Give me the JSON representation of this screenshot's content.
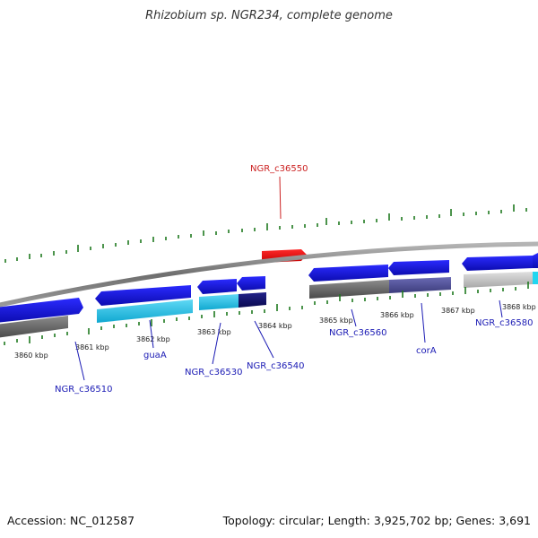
{
  "title": "Rhizobium sp. NGR234, complete genome",
  "footer": {
    "accession": "Accession: NC_012587",
    "summary": "Topology: circular; Length: 3,925,702 bp; Genes: 3,691"
  },
  "colors": {
    "backbone": "#8a8a8a",
    "forward_gene": "#1515d6",
    "highlight_gene": "#e01010",
    "label": "#1a1ab4",
    "highlight_label": "#cc2222",
    "gc_skew": "#1f7a1f",
    "cds_cyan": "#26c6ea",
    "cds_gray": "#6b6b6b",
    "cds_light": "#c8c8c8",
    "cds_navy": "#131370",
    "cds_purple": "#53539a"
  },
  "scale_ticks": [
    "3860 kbp",
    "3861 kbp",
    "3862 kbp",
    "3863 kbp",
    "3864 kbp",
    "3865 kbp",
    "3866 kbp",
    "3867 kbp",
    "3868 kbp"
  ],
  "genes": [
    {
      "id": "NGR_c36510",
      "strand": "reverse",
      "highlight": false
    },
    {
      "id": "guaA",
      "strand": "reverse",
      "highlight": false
    },
    {
      "id": "NGR_c36530",
      "strand": "reverse",
      "highlight": false
    },
    {
      "id": "NGR_c36540",
      "strand": "reverse",
      "highlight": false
    },
    {
      "id": "NGR_c36550",
      "strand": "forward",
      "highlight": true
    },
    {
      "id": "NGR_c36560",
      "strand": "reverse",
      "highlight": false
    },
    {
      "id": "corA",
      "strand": "reverse",
      "highlight": false
    },
    {
      "id": "NGR_c36580",
      "strand": "reverse",
      "highlight": false
    }
  ]
}
